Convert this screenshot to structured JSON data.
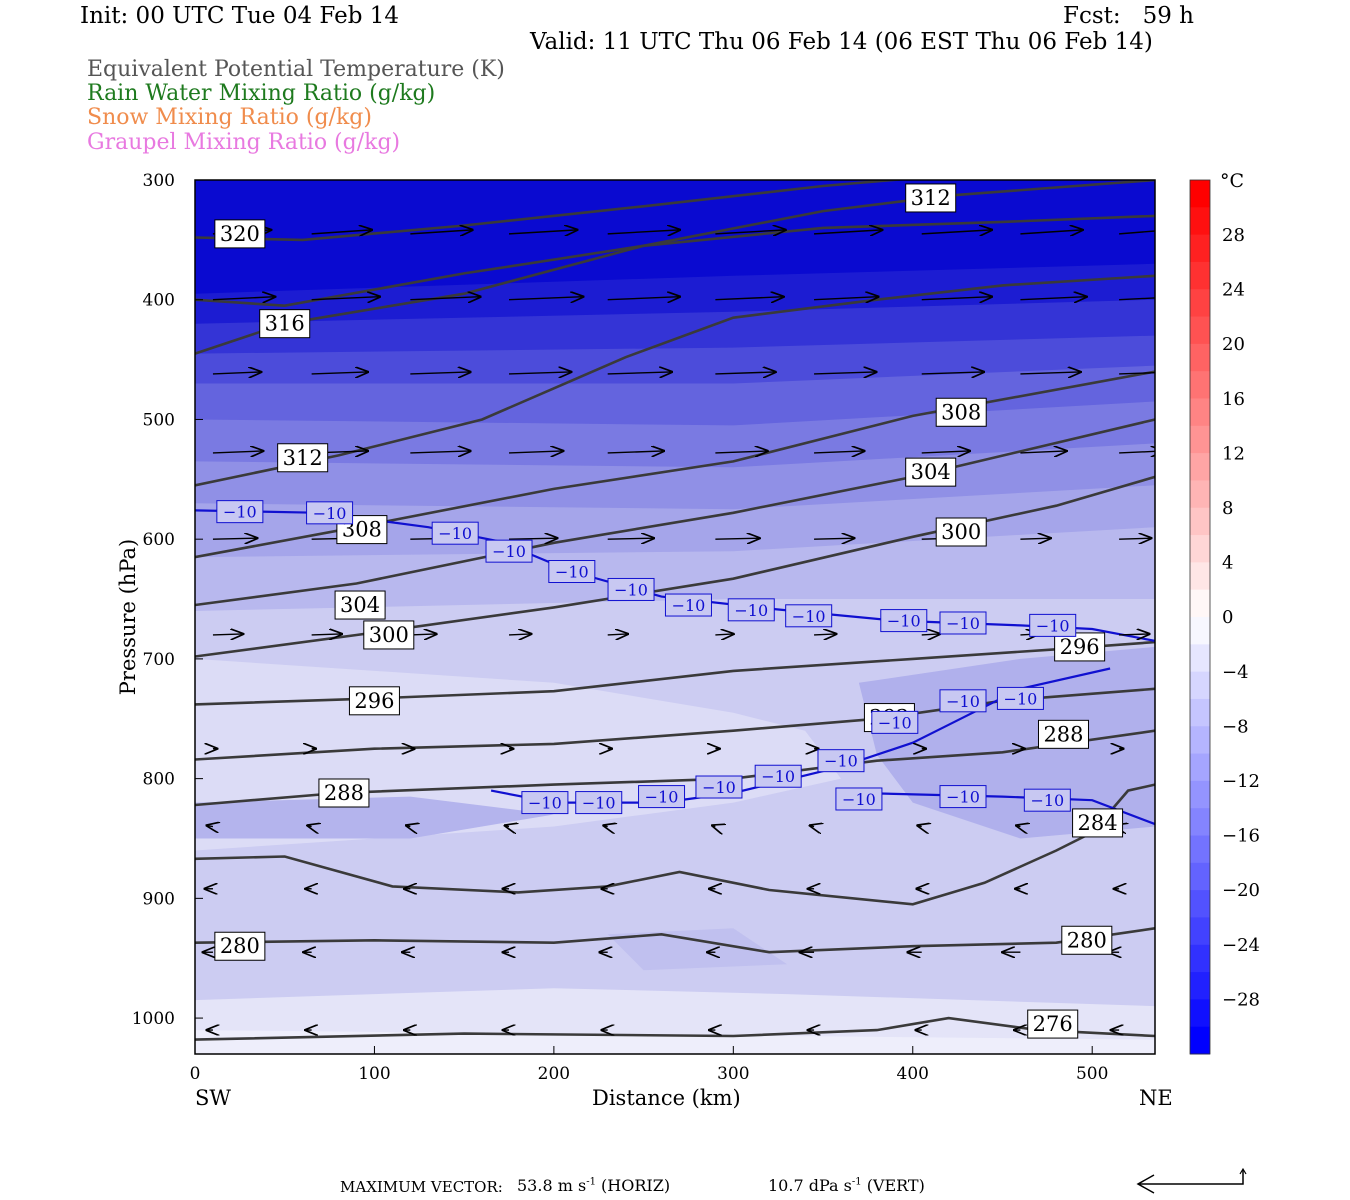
{
  "header": {
    "init": "Init: 00 UTC Tue 04 Feb 14",
    "fcst": "Fcst:   59 h",
    "valid": "Valid: 11 UTC Thu 06 Feb 14 (06 EST Thu 06 Feb 14)"
  },
  "legend": [
    {
      "label": "Equivalent Potential Temperature (K)",
      "color": "#555555"
    },
    {
      "label": "Rain Water Mixing Ratio (g/kg)",
      "color": "#1e7a1e"
    },
    {
      "label": "Snow Mixing Ratio (g/kg)",
      "color": "#f08c4c"
    },
    {
      "label": "Graupel Mixing Ratio (g/kg)",
      "color": "#e879e0"
    }
  ],
  "chart_data": {
    "type": "heatmap",
    "xlabel": "Distance (km)",
    "ylabel": "Pressure (hPa)",
    "x_ticks": [
      0,
      100,
      200,
      300,
      400,
      500
    ],
    "y_ticks": [
      300,
      400,
      500,
      600,
      700,
      800,
      900,
      1000
    ],
    "xlim": [
      0,
      535
    ],
    "ylim": [
      1030,
      300
    ],
    "y_reversed": true,
    "x_end_labels": {
      "left": "SW",
      "right": "NE"
    },
    "colorbar": {
      "unit": "°C",
      "ticks": [
        28,
        24,
        20,
        16,
        12,
        8,
        4,
        0,
        -4,
        -8,
        -12,
        -16,
        -20,
        -24,
        -28
      ]
    },
    "theta_e_contours": [
      {
        "label": "320",
        "points": [
          [
            0,
            348
          ],
          [
            60,
            350
          ],
          [
            150,
            338
          ],
          [
            250,
            322
          ],
          [
            350,
            305
          ],
          [
            450,
            292
          ],
          [
            535,
            284
          ]
        ]
      },
      {
        "label": "316",
        "points": [
          [
            0,
            400
          ],
          [
            50,
            405
          ],
          [
            150,
            378
          ],
          [
            250,
            355
          ],
          [
            350,
            340
          ],
          [
            450,
            335
          ],
          [
            535,
            330
          ]
        ]
      },
      {
        "label": "312",
        "points": [
          [
            0,
            445
          ],
          [
            50,
            420
          ],
          [
            150,
            395
          ],
          [
            250,
            355
          ],
          [
            350,
            326
          ],
          [
            420,
            313
          ],
          [
            535,
            300
          ]
        ]
      },
      {
        "label": "312",
        "points": [
          [
            0,
            555
          ],
          [
            80,
            530
          ],
          [
            160,
            500
          ],
          [
            240,
            448
          ],
          [
            300,
            415
          ],
          [
            380,
            400
          ],
          [
            450,
            388
          ],
          [
            535,
            380
          ]
        ]
      },
      {
        "label": "308",
        "points": [
          [
            0,
            615
          ],
          [
            90,
            590
          ],
          [
            200,
            558
          ],
          [
            300,
            535
          ],
          [
            400,
            497
          ],
          [
            535,
            460
          ]
        ]
      },
      {
        "label": "304",
        "points": [
          [
            0,
            655
          ],
          [
            90,
            637
          ],
          [
            200,
            603
          ],
          [
            300,
            578
          ],
          [
            400,
            548
          ],
          [
            535,
            500
          ]
        ]
      },
      {
        "label": "300",
        "points": [
          [
            0,
            698
          ],
          [
            90,
            680
          ],
          [
            200,
            657
          ],
          [
            300,
            633
          ],
          [
            400,
            598
          ],
          [
            480,
            572
          ],
          [
            535,
            548
          ]
        ]
      },
      {
        "label": "296",
        "points": [
          [
            0,
            738
          ],
          [
            100,
            733
          ],
          [
            200,
            727
          ],
          [
            300,
            710
          ],
          [
            400,
            700
          ],
          [
            480,
            692
          ],
          [
            535,
            686
          ]
        ]
      },
      {
        "label": "292",
        "points": [
          [
            0,
            784
          ],
          [
            100,
            775
          ],
          [
            200,
            771
          ],
          [
            300,
            760
          ],
          [
            380,
            750
          ],
          [
            450,
            735
          ],
          [
            535,
            725
          ]
        ]
      },
      {
        "label": "288",
        "points": [
          [
            0,
            822
          ],
          [
            80,
            812
          ],
          [
            200,
            805
          ],
          [
            300,
            800
          ],
          [
            380,
            785
          ],
          [
            450,
            778
          ],
          [
            535,
            760
          ]
        ]
      },
      {
        "label": "284",
        "points": [
          [
            0,
            867
          ],
          [
            50,
            865
          ],
          [
            110,
            890
          ],
          [
            180,
            895
          ],
          [
            230,
            890
          ],
          [
            270,
            878
          ],
          [
            320,
            893
          ],
          [
            400,
            905
          ],
          [
            440,
            887
          ],
          [
            480,
            860
          ],
          [
            500,
            845
          ],
          [
            520,
            810
          ],
          [
            535,
            805
          ]
        ]
      },
      {
        "label": "280",
        "points": [
          [
            0,
            937
          ],
          [
            100,
            935
          ],
          [
            200,
            937
          ],
          [
            260,
            930
          ],
          [
            320,
            945
          ],
          [
            400,
            940
          ],
          [
            480,
            937
          ],
          [
            535,
            925
          ]
        ]
      },
      {
        "label": "276",
        "points": [
          [
            0,
            1018
          ],
          [
            150,
            1013
          ],
          [
            300,
            1015
          ],
          [
            380,
            1010
          ],
          [
            420,
            1000
          ],
          [
            470,
            1010
          ],
          [
            535,
            1015
          ]
        ]
      }
    ],
    "isotherm_minus10": [
      [
        [
          0,
          576
        ],
        [
          70,
          578
        ],
        [
          130,
          590
        ],
        [
          170,
          602
        ],
        [
          210,
          627
        ],
        [
          260,
          648
        ],
        [
          320,
          658
        ],
        [
          390,
          668
        ],
        [
          460,
          672
        ],
        [
          500,
          675
        ],
        [
          535,
          685
        ]
      ],
      [
        [
          165,
          810
        ],
        [
          200,
          820
        ],
        [
          260,
          820
        ],
        [
          300,
          812
        ],
        [
          360,
          790
        ],
        [
          400,
          770
        ],
        [
          420,
          755
        ],
        [
          460,
          725
        ],
        [
          510,
          708
        ]
      ],
      [
        [
          370,
          812
        ],
        [
          450,
          815
        ],
        [
          500,
          818
        ],
        [
          535,
          838
        ]
      ]
    ],
    "footer": {
      "label": "MAXIMUM VECTOR:",
      "horiz_value": "53.8",
      "horiz_unit_text": "m s",
      "horiz_exp": "-1",
      "horiz_tag": "(HORIZ)",
      "vert_value": "10.7",
      "vert_unit_text": "dPa s",
      "vert_exp": "-1",
      "vert_tag": "(VERT)"
    }
  }
}
